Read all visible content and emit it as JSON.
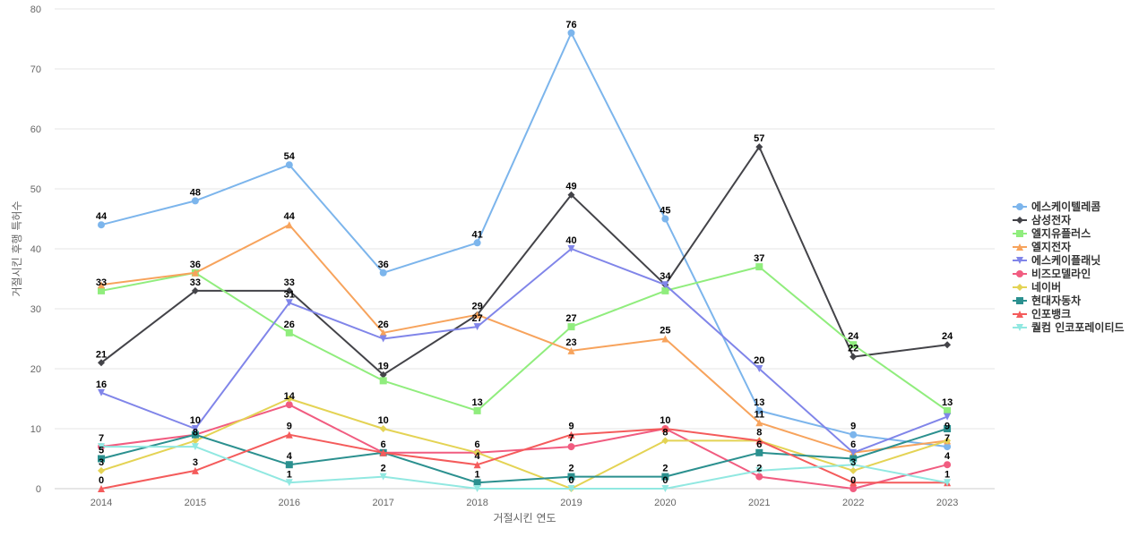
{
  "chart_data": {
    "type": "line",
    "xlabel": "거절시킨 연도",
    "ylabel": "거절시킨 후행 특허수",
    "ylim": [
      0,
      80
    ],
    "yticks": [
      0,
      10,
      20,
      30,
      40,
      50,
      60,
      70,
      80
    ],
    "grid": true,
    "legend_position": "right",
    "categories": [
      "2014",
      "2015",
      "2016",
      "2017",
      "2018",
      "2019",
      "2020",
      "2021",
      "2022",
      "2023"
    ],
    "series": [
      {
        "name": "에스케이텔레콤",
        "color": "#7cb5ec",
        "marker": "circle",
        "values": [
          44,
          48,
          54,
          36,
          41,
          76,
          45,
          13,
          9,
          7
        ]
      },
      {
        "name": "삼성전자",
        "color": "#434348",
        "marker": "diamond",
        "values": [
          21,
          33,
          33,
          19,
          29,
          49,
          34,
          57,
          22,
          24
        ]
      },
      {
        "name": "엘지유플러스",
        "color": "#90ed7d",
        "marker": "square",
        "values": [
          33,
          36,
          26,
          18,
          13,
          27,
          33,
          37,
          24,
          13
        ]
      },
      {
        "name": "엘지전자",
        "color": "#f7a35c",
        "marker": "triangle",
        "values": [
          34,
          36,
          44,
          26,
          29,
          23,
          25,
          11,
          6,
          8
        ]
      },
      {
        "name": "에스케이플래닛",
        "color": "#8085e9",
        "marker": "triangle-down",
        "values": [
          16,
          10,
          31,
          25,
          27,
          40,
          34,
          20,
          6,
          12
        ]
      },
      {
        "name": "비즈모델라인",
        "color": "#f15c80",
        "marker": "circle",
        "values": [
          7,
          9,
          14,
          6,
          6,
          7,
          10,
          2,
          0,
          4
        ]
      },
      {
        "name": "네이버",
        "color": "#e4d354",
        "marker": "diamond",
        "values": [
          3,
          8,
          15,
          10,
          6,
          0,
          8,
          8,
          3,
          8
        ]
      },
      {
        "name": "현대자동차",
        "color": "#2b908f",
        "marker": "square",
        "values": [
          5,
          9,
          4,
          6,
          1,
          2,
          2,
          6,
          5,
          10
        ]
      },
      {
        "name": "인포뱅크",
        "color": "#f45b5b",
        "marker": "triangle",
        "values": [
          0,
          3,
          9,
          6,
          4,
          9,
          10,
          8,
          1,
          1
        ]
      },
      {
        "name": "퀄컴 인코포레이티드",
        "color": "#91e8e1",
        "marker": "triangle-down",
        "values": [
          7,
          7,
          1,
          2,
          0,
          0,
          0,
          3,
          4,
          1
        ]
      }
    ],
    "data_labels": {
      "2014": [
        44,
        33,
        21,
        16,
        7,
        5,
        3,
        0
      ],
      "2015": [
        48,
        36,
        33,
        10,
        8,
        3
      ],
      "2016": [
        54,
        44,
        33,
        31,
        26,
        14,
        9,
        4,
        1
      ],
      "2017": [
        36,
        26,
        19,
        10,
        6,
        2
      ],
      "2018": [
        41,
        29,
        27,
        13,
        6,
        4,
        1
      ],
      "2019": [
        76,
        49,
        40,
        27,
        23,
        9,
        7,
        2,
        0
      ],
      "2020": [
        45,
        34,
        25,
        10,
        8,
        2,
        0
      ],
      "2021": [
        57,
        37,
        20,
        13,
        11,
        8,
        6,
        2
      ],
      "2022": [
        24,
        22,
        9,
        6,
        3,
        0
      ],
      "2023": [
        24,
        13,
        9,
        7,
        4,
        1
      ]
    }
  }
}
